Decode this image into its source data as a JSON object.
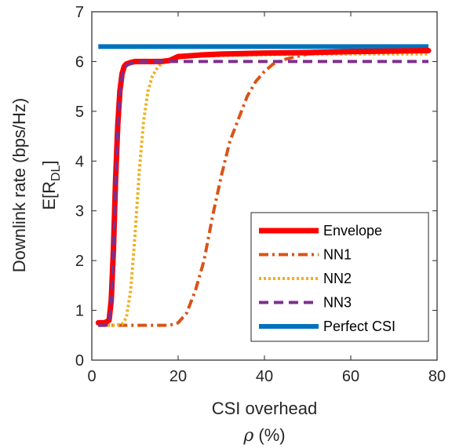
{
  "chart_data": {
    "type": "line",
    "xlabel_line1": "CSI overhead",
    "xlabel_symbol": "ρ",
    "xlabel_unit": " (%)",
    "ylabel_line1": "Downlink rate (bps/Hz)",
    "ylabel_main": "E[R",
    "ylabel_sub": "DL",
    "ylabel_close": "]",
    "xlim": [
      0,
      80
    ],
    "ylim": [
      0,
      7
    ],
    "xticks": [
      0,
      20,
      40,
      60,
      80
    ],
    "yticks": [
      0,
      1,
      2,
      3,
      4,
      5,
      6,
      7
    ],
    "grid": false,
    "legend_position": "bottom-right",
    "series": [
      {
        "name": "Envelope",
        "color": "#FF0000",
        "style": "solid-thick",
        "x": [
          1.5,
          3,
          4,
          4.5,
          5,
          5.5,
          6,
          6.5,
          7,
          7.5,
          8,
          9,
          10,
          12,
          14,
          16,
          18,
          20,
          25,
          30,
          40,
          50,
          60,
          78
        ],
        "y": [
          0.75,
          0.75,
          0.8,
          1.2,
          2.2,
          3.6,
          4.7,
          5.4,
          5.75,
          5.9,
          5.95,
          5.98,
          6.0,
          6.0,
          6.0,
          6.0,
          6.02,
          6.1,
          6.13,
          6.15,
          6.17,
          6.18,
          6.2,
          6.22
        ]
      },
      {
        "name": "NN1",
        "color": "#D95319",
        "style": "dashdot",
        "x": [
          1.5,
          5,
          10,
          15,
          18,
          20,
          22,
          24,
          26,
          28,
          30,
          32,
          34,
          36,
          38,
          40,
          42,
          45,
          50,
          55,
          60,
          70,
          78
        ],
        "y": [
          0.7,
          0.7,
          0.7,
          0.7,
          0.7,
          0.75,
          0.95,
          1.4,
          2.0,
          2.9,
          3.7,
          4.4,
          4.85,
          5.3,
          5.6,
          5.8,
          5.95,
          6.05,
          6.15,
          6.18,
          6.2,
          6.2,
          6.2
        ]
      },
      {
        "name": "NN2",
        "color": "#EDB120",
        "style": "dotted",
        "x": [
          1.5,
          5,
          7,
          8,
          9,
          10,
          11,
          12,
          13,
          14,
          15,
          16,
          17,
          18,
          20,
          30,
          50,
          78
        ],
        "y": [
          0.7,
          0.7,
          0.72,
          0.85,
          1.4,
          2.5,
          3.8,
          4.8,
          5.4,
          5.7,
          5.85,
          5.95,
          6.0,
          6.05,
          6.1,
          6.12,
          6.15,
          6.15
        ]
      },
      {
        "name": "NN3",
        "color": "#7E2F8E",
        "style": "dashed",
        "x": [
          1.5,
          3,
          4,
          4.5,
          5,
          5.5,
          6,
          6.5,
          7,
          7.5,
          8,
          9,
          10,
          12,
          15,
          20,
          40,
          60,
          78
        ],
        "y": [
          0.7,
          0.7,
          0.75,
          1.1,
          2.1,
          3.5,
          4.6,
          5.3,
          5.7,
          5.85,
          5.92,
          5.96,
          5.98,
          6.0,
          6.0,
          6.0,
          6.0,
          6.0,
          6.0
        ]
      },
      {
        "name": "Perfect CSI",
        "color": "#0072BD",
        "style": "solid",
        "x": [
          1.5,
          78
        ],
        "y": [
          6.3,
          6.3
        ]
      }
    ]
  }
}
